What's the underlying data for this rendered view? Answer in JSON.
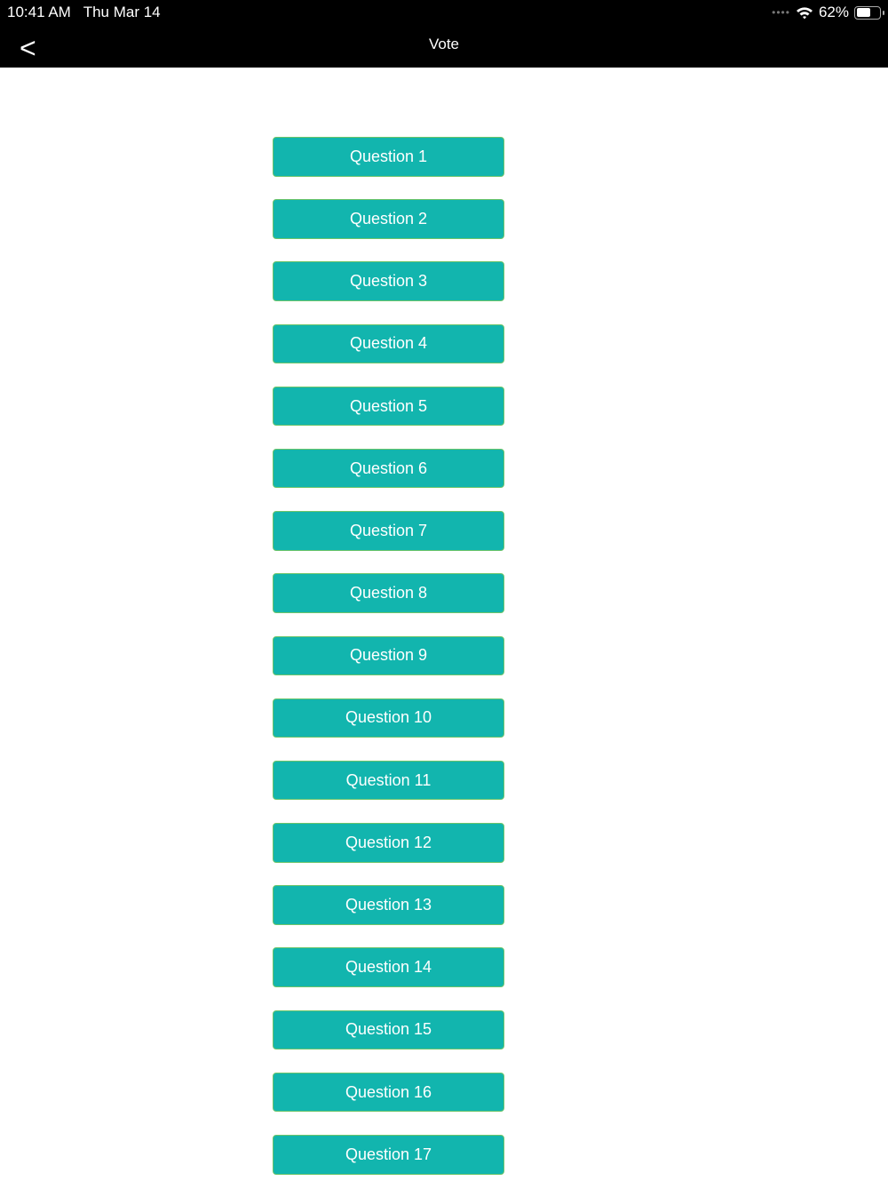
{
  "status_bar": {
    "time": "10:41 AM",
    "date": "Thu Mar 14",
    "battery": "62%",
    "battery_level": 0.62,
    "wifi_icon": "wifi-icon",
    "signal_icon": "signal-dots-icon"
  },
  "nav": {
    "back_label": "<",
    "title": "Vote"
  },
  "colors": {
    "button_fill": "#12b5ae",
    "button_border": "#6cc46a",
    "nav_bg": "#000000"
  },
  "questions": [
    "Question 1",
    "Question 2",
    "Question 3",
    "Question 4",
    "Question 5",
    "Question 6",
    "Question 7",
    "Question 8",
    "Question 9",
    "Question 10",
    "Question 11",
    "Question 12",
    "Question 13",
    "Question 14",
    "Question 15",
    "Question 16",
    "Question 17"
  ]
}
